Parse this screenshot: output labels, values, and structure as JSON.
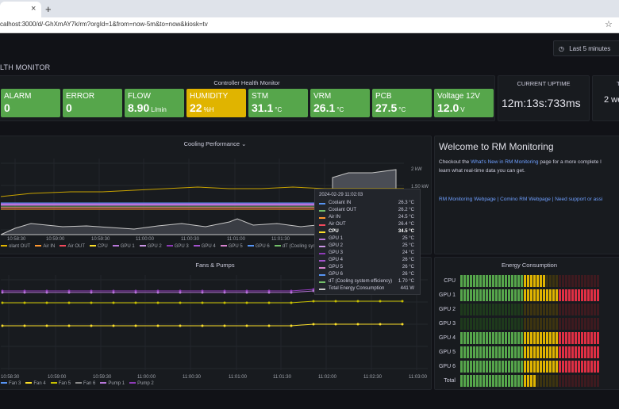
{
  "browser": {
    "tab_close": "×",
    "new_tab": "+",
    "url": "calhost:3000/d/-GhXmAY7k/rm?orgId=1&from=now-5m&to=now&kiosk=tv",
    "bookmark_icon": "star-icon"
  },
  "dashboard": {
    "title": "LTH MONITOR",
    "time_picker": "Last 5 minutes",
    "time_picker_icon": "clock-icon",
    "time_picker_caret": "⌄"
  },
  "health_panel": {
    "title": "Controller Health Monitor",
    "stats": [
      {
        "label": "ALARM",
        "value": "0",
        "unit": "",
        "color": "#56a64b"
      },
      {
        "label": "ERROR",
        "value": "0",
        "unit": "",
        "color": "#56a64b"
      },
      {
        "label": "FLOW",
        "value": "8.90",
        "unit": "L/min",
        "color": "#56a64b"
      },
      {
        "label": "HUMIDITY",
        "value": "22",
        "unit": "%H",
        "color": "#e0b400"
      },
      {
        "label": "STM",
        "value": "31.1",
        "unit": "°C",
        "color": "#56a64b"
      },
      {
        "label": "VRM",
        "value": "26.1",
        "unit": "°C",
        "color": "#56a64b"
      },
      {
        "label": "PCB",
        "value": "27.5",
        "unit": "°C",
        "color": "#56a64b"
      },
      {
        "label": "Voltage 12V",
        "value": "12.0",
        "unit": "V",
        "color": "#56a64b"
      }
    ]
  },
  "uptime_panel": {
    "title": "CURRENT UPTIME",
    "value": "12m:13s:733ms"
  },
  "next_panel": {
    "title": "T",
    "value": "2 we"
  },
  "cooling_panel": {
    "title": "Cooling Performance",
    "caret": "⌄",
    "x_ticks": [
      "10:58:30",
      "10:59:00",
      "10:59:30",
      "11:00:00",
      "11:00:30",
      "11:01:00",
      "11:01:30",
      "11:02:00"
    ],
    "right_ticks": [
      "2 kW",
      "1.50 kW"
    ],
    "legend": [
      {
        "name": "olant OUT",
        "color": "#e0b400"
      },
      {
        "name": "Air IN",
        "color": "#ff9830"
      },
      {
        "name": "Air OUT",
        "color": "#f2495c"
      },
      {
        "name": "CPU",
        "color": "#fade2a"
      },
      {
        "name": "GPU 1",
        "color": "#b877d9"
      },
      {
        "name": "GPU 2",
        "color": "#ca95e5"
      },
      {
        "name": "GPU 3",
        "color": "#8f3bb8"
      },
      {
        "name": "GPU 4",
        "color": "#a352cc"
      },
      {
        "name": "GPU 5",
        "color": "#d683ce"
      },
      {
        "name": "GPU 6",
        "color": "#5794f2"
      },
      {
        "name": "dT (Cooling system eff",
        "color": "#73bf69"
      }
    ]
  },
  "tooltip": {
    "time": "2024-02-29 11:02:03",
    "rows": [
      {
        "name": "Coolant IN",
        "value": "26.3 °C",
        "color": "#5794f2",
        "bold": false
      },
      {
        "name": "Coolant OUT",
        "value": "26.2 °C",
        "color": "#73bf69",
        "bold": false
      },
      {
        "name": "Air IN",
        "value": "24.5 °C",
        "color": "#ff9830",
        "bold": false
      },
      {
        "name": "Air OUT",
        "value": "26.4 °C",
        "color": "#f2495c",
        "bold": false
      },
      {
        "name": "CPU",
        "value": "34.5 °C",
        "color": "#fade2a",
        "bold": true
      },
      {
        "name": "GPU 1",
        "value": "25 °C",
        "color": "#b877d9",
        "bold": false
      },
      {
        "name": "GPU 2",
        "value": "25 °C",
        "color": "#ca95e5",
        "bold": false
      },
      {
        "name": "GPU 3",
        "value": "24 °C",
        "color": "#8f3bb8",
        "bold": false
      },
      {
        "name": "GPU 4",
        "value": "26 °C",
        "color": "#a352cc",
        "bold": false
      },
      {
        "name": "GPU 5",
        "value": "26 °C",
        "color": "#d683ce",
        "bold": false
      },
      {
        "name": "GPU 6",
        "value": "26 °C",
        "color": "#5794f2",
        "bold": false
      },
      {
        "name": "dT (Cooling system efficiency)",
        "value": "1.70 °C",
        "color": "#73bf69",
        "bold": false
      },
      {
        "name": "Total Energy Consumption",
        "value": "441 W",
        "color": "#c7c7c7",
        "bold": false
      }
    ],
    "right_axis_fragments": [
      "W",
      "W"
    ],
    "right_x_fragment": "00"
  },
  "fans_panel": {
    "title": "Fans & Pumps",
    "x_ticks": [
      "10:58:30",
      "10:59:00",
      "10:59:30",
      "11:00:00",
      "11:00:30",
      "11:01:00",
      "11:01:30",
      "11:02:00",
      "11:02:30",
      "11:03:00"
    ],
    "legend": [
      {
        "name": "Fan 3",
        "color": "#5794f2"
      },
      {
        "name": "Fan 4",
        "color": "#fade2a"
      },
      {
        "name": "Fan 5",
        "color": "#c8c000"
      },
      {
        "name": "Fan 6",
        "color": "#8c8c8c"
      },
      {
        "name": "Pump 1",
        "color": "#b877d9"
      },
      {
        "name": "Pump 2",
        "color": "#8f3bb8"
      }
    ]
  },
  "welcome_panel": {
    "heading": "Welcome to RM Monitoring",
    "text_before": "Checkout the ",
    "link_text": "What's New in RM Monitoring",
    "text_after": " page for a more complete l",
    "text_line2": "learn what real-time data you can get.",
    "links": "RM Monitoring Webpage | Comino RM Webpage | Need support or assi"
  },
  "energy_panel": {
    "title": "Energy Consumption",
    "rows": [
      {
        "label": "CPU",
        "fraction": 0.62
      },
      {
        "label": "GPU 1",
        "fraction": 1.0
      },
      {
        "label": "GPU 2",
        "fraction": 0.0
      },
      {
        "label": "GPU 3",
        "fraction": 0.0
      },
      {
        "label": "GPU 4",
        "fraction": 1.0
      },
      {
        "label": "GPU 5",
        "fraction": 1.0
      },
      {
        "label": "GPU 6",
        "fraction": 1.0
      },
      {
        "label": "Total",
        "fraction": 0.55
      }
    ],
    "colors": {
      "green": "#56a64b",
      "yellow": "#e0b400",
      "red": "#e02f44",
      "dim_green": "#1e3a1c",
      "dim_yellow": "#3d3410",
      "dim_red": "#3e1a1f"
    }
  }
}
